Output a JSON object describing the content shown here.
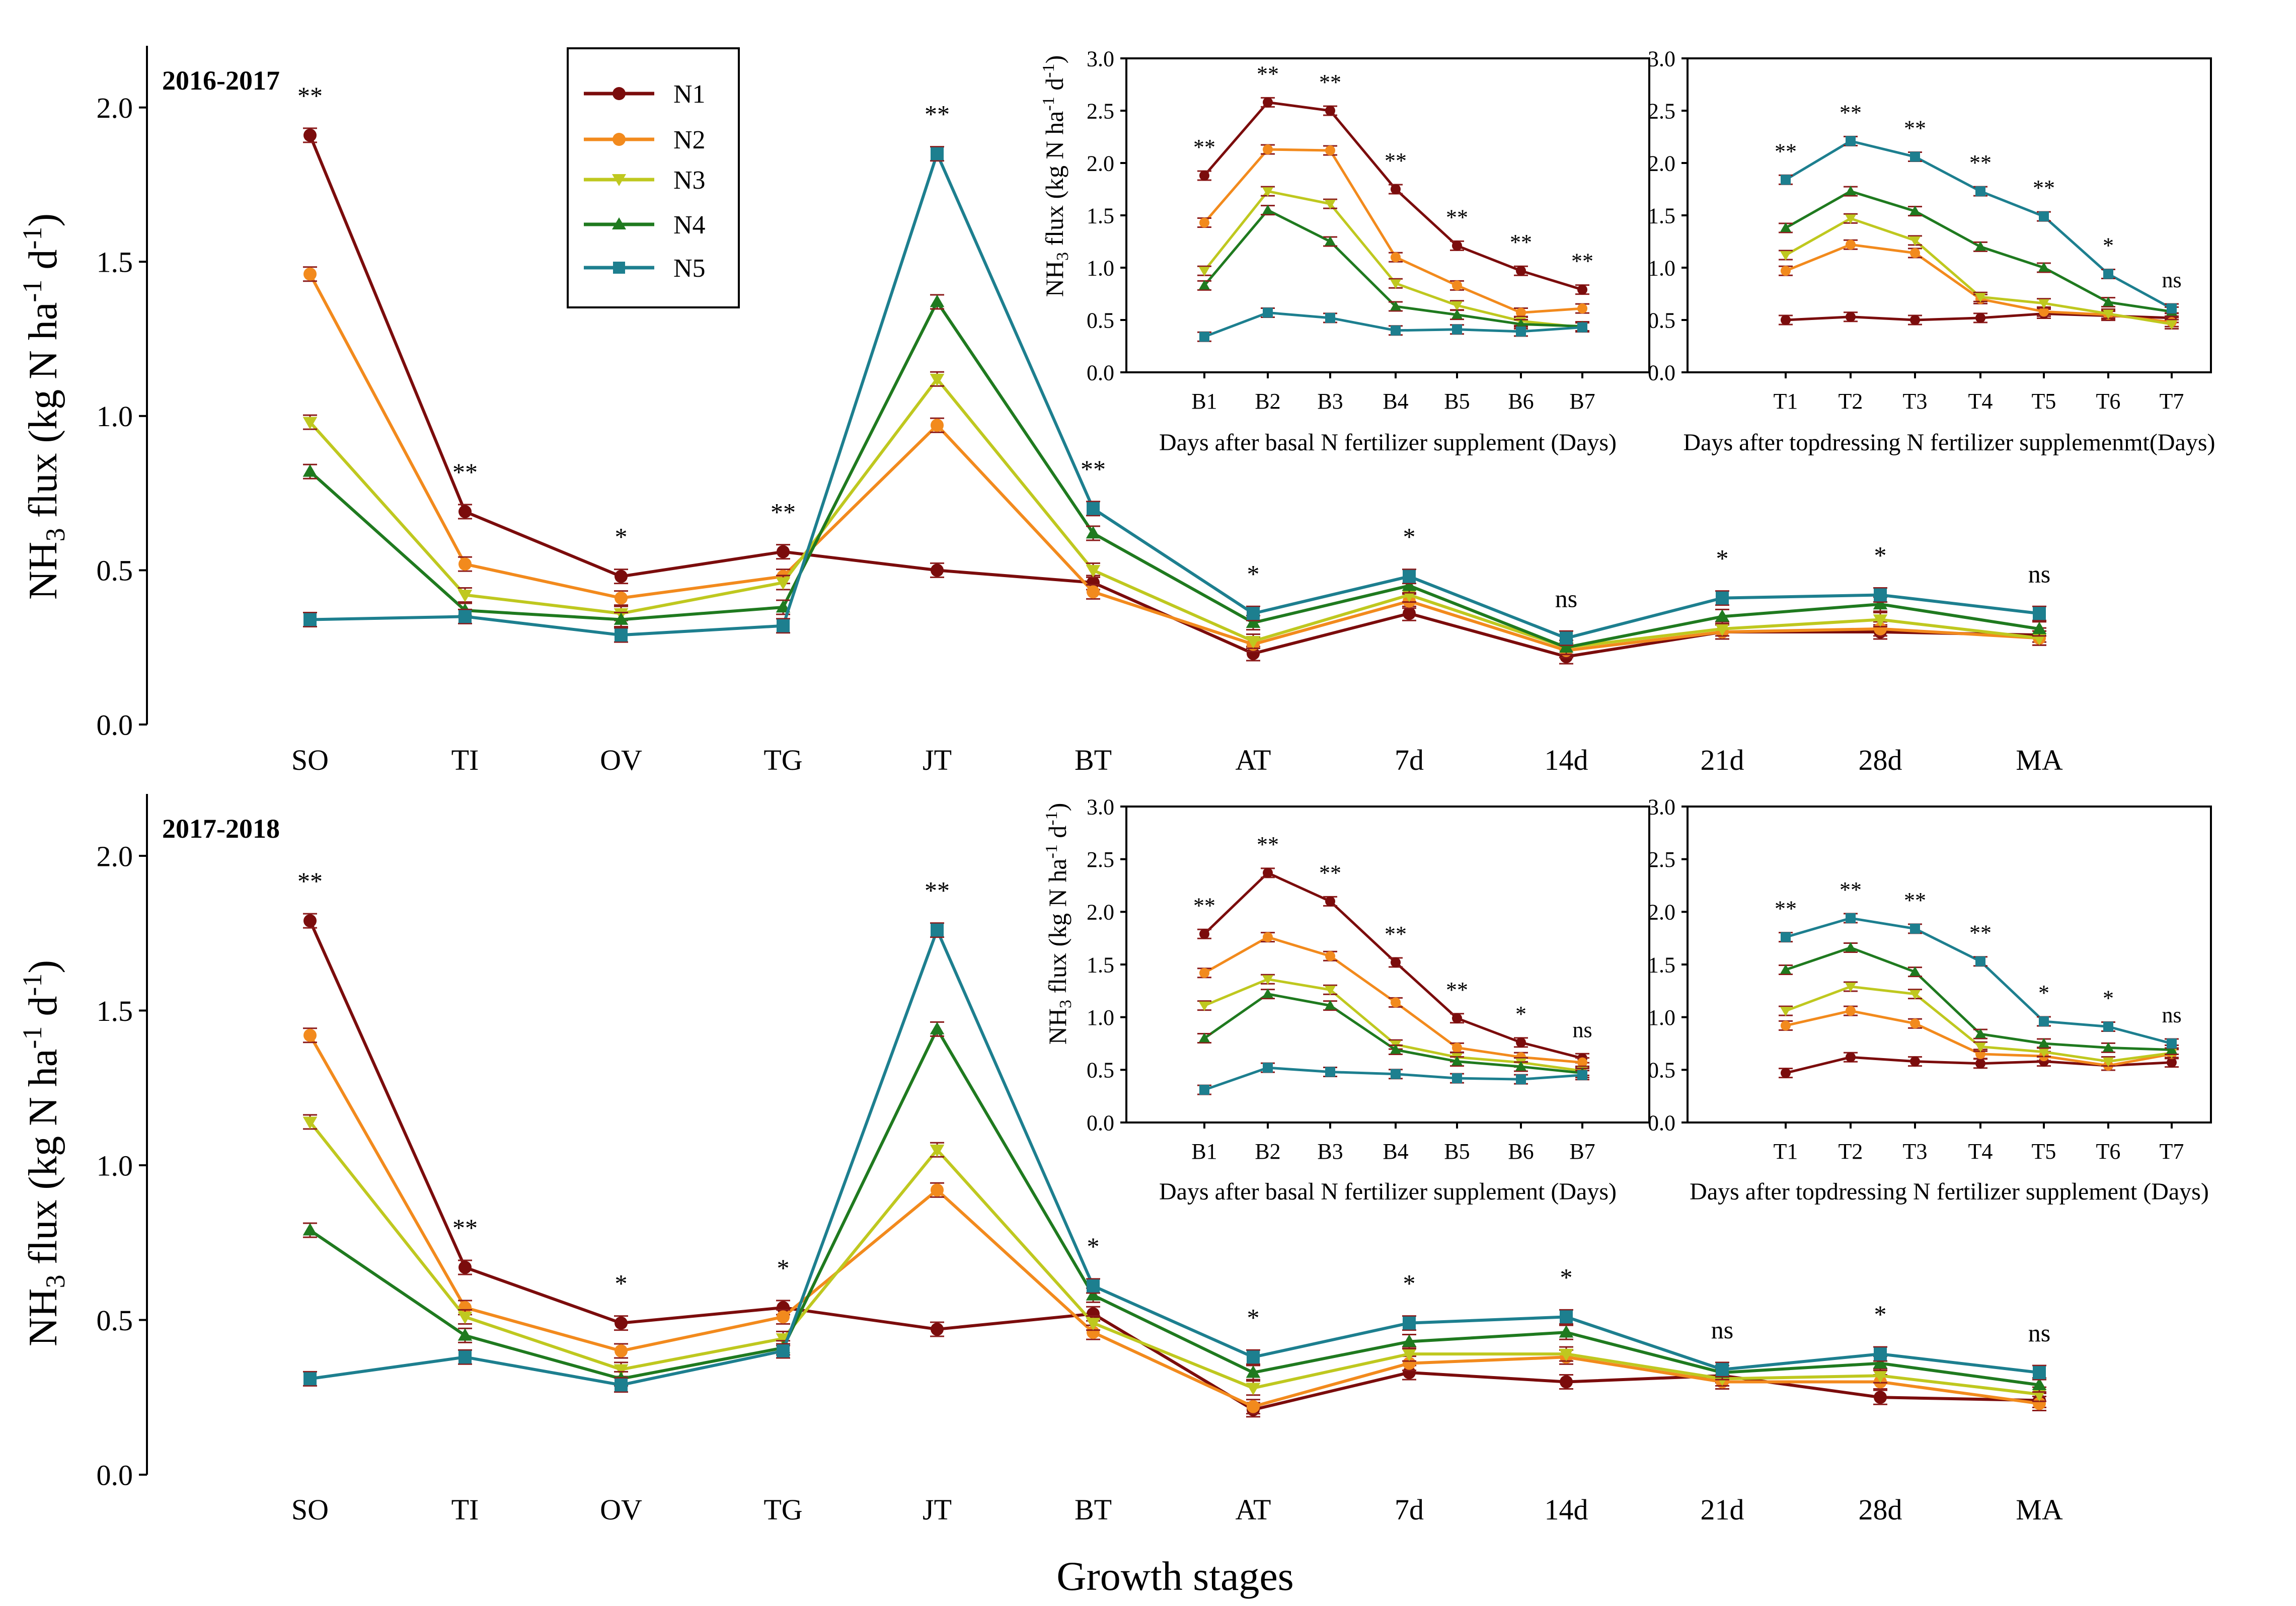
{
  "colors": {
    "N1": "#7b0c0c",
    "N2": "#f28a1d",
    "N3": "#bfc81f",
    "N4": "#1f7a1f",
    "N5": "#1d7f8f"
  },
  "figure": {
    "x_axis_title": "Growth stages",
    "y_axis_title_main": "NH",
    "y_axis_title_sub": "3",
    "y_axis_title_rest": " flux (kg N ha",
    "y_axis_title_sup1": "-1",
    "y_axis_title_mid": " d",
    "y_axis_title_sup2": "-1",
    "y_axis_title_end": ")"
  },
  "legend": [
    "N1",
    "N2",
    "N3",
    "N4",
    "N5"
  ],
  "chart_data": [
    {
      "id": "main2016",
      "type": "line",
      "title": "2016-2017",
      "xlabel": "",
      "ylabel": "NH3 flux (kg N ha-1 d-1)",
      "ylim": [
        0,
        2.2
      ],
      "yticks": [
        "0.0",
        "0.5",
        "1.0",
        "1.5",
        "2.0"
      ],
      "categories": [
        "SO",
        "TI",
        "OV",
        "TG",
        "JT",
        "BT",
        "AT",
        "7d",
        "14d",
        "21d",
        "28d",
        "MA"
      ],
      "significance": [
        "**",
        "**",
        "*",
        "**",
        "**",
        "**",
        "*",
        "*",
        "ns",
        "*",
        "*",
        "ns"
      ],
      "series": [
        {
          "name": "N1",
          "values": [
            1.91,
            0.69,
            0.48,
            0.56,
            0.5,
            0.46,
            0.23,
            0.36,
            0.22,
            0.3,
            0.3,
            0.29
          ]
        },
        {
          "name": "N2",
          "values": [
            1.46,
            0.52,
            0.41,
            0.48,
            0.97,
            0.43,
            0.26,
            0.4,
            0.24,
            0.3,
            0.31,
            0.28
          ]
        },
        {
          "name": "N3",
          "values": [
            0.98,
            0.42,
            0.36,
            0.46,
            1.12,
            0.5,
            0.27,
            0.42,
            0.25,
            0.31,
            0.34,
            0.28
          ]
        },
        {
          "name": "N4",
          "values": [
            0.82,
            0.37,
            0.34,
            0.38,
            1.37,
            0.62,
            0.33,
            0.45,
            0.25,
            0.35,
            0.39,
            0.31
          ]
        },
        {
          "name": "N5",
          "values": [
            0.34,
            0.35,
            0.29,
            0.32,
            1.85,
            0.7,
            0.36,
            0.48,
            0.28,
            0.41,
            0.42,
            0.36
          ]
        }
      ]
    },
    {
      "id": "inset2016a",
      "type": "line",
      "xlabel": "Days after basal N fertilizer supplement (Days)",
      "ylabel": "NH3 flux (kg N ha-1 d-1)",
      "ylim": [
        0,
        3.0
      ],
      "yticks": [
        "0.0",
        "0.5",
        "1.0",
        "1.5",
        "2.0",
        "2.5",
        "3.0"
      ],
      "categories": [
        "B1",
        "B2",
        "B3",
        "B4",
        "B5",
        "B6",
        "B7"
      ],
      "significance": [
        "**",
        "**",
        "**",
        "**",
        "**",
        "**",
        "**"
      ],
      "series": [
        {
          "name": "N1",
          "values": [
            1.88,
            2.58,
            2.5,
            1.75,
            1.21,
            0.97,
            0.79
          ]
        },
        {
          "name": "N2",
          "values": [
            1.43,
            2.13,
            2.12,
            1.1,
            0.83,
            0.57,
            0.61
          ]
        },
        {
          "name": "N3",
          "values": [
            0.97,
            1.73,
            1.61,
            0.85,
            0.64,
            0.49,
            0.43
          ]
        },
        {
          "name": "N4",
          "values": [
            0.83,
            1.55,
            1.25,
            0.63,
            0.55,
            0.46,
            0.44
          ]
        },
        {
          "name": "N5",
          "values": [
            0.34,
            0.57,
            0.52,
            0.4,
            0.41,
            0.39,
            0.43
          ]
        }
      ]
    },
    {
      "id": "inset2016b",
      "type": "line",
      "xlabel": "Days after topdressing N fertilizer supplemenmt(Days)",
      "ylabel": "",
      "ylim": [
        0,
        3.0
      ],
      "yticks": [
        "0.0",
        "0.5",
        "1.0",
        "1.5",
        "2.0",
        "2.5",
        "3.0"
      ],
      "categories": [
        "T1",
        "T2",
        "T3",
        "T4",
        "T5",
        "T6",
        "T7"
      ],
      "significance": [
        "**",
        "**",
        "**",
        "**",
        "**",
        "*",
        "ns"
      ],
      "series": [
        {
          "name": "N1",
          "values": [
            0.5,
            0.53,
            0.5,
            0.52,
            0.56,
            0.54,
            0.52
          ]
        },
        {
          "name": "N2",
          "values": [
            0.97,
            1.22,
            1.14,
            0.7,
            0.58,
            0.55,
            0.48
          ]
        },
        {
          "name": "N3",
          "values": [
            1.12,
            1.47,
            1.26,
            0.72,
            0.66,
            0.56,
            0.46
          ]
        },
        {
          "name": "N4",
          "values": [
            1.38,
            1.73,
            1.54,
            1.2,
            1.0,
            0.67,
            0.58
          ]
        },
        {
          "name": "N5",
          "values": [
            1.84,
            2.21,
            2.06,
            1.73,
            1.49,
            0.94,
            0.61
          ]
        }
      ]
    },
    {
      "id": "main2017",
      "type": "line",
      "title": "2017-2018",
      "xlabel": "Growth stages",
      "ylabel": "NH3 flux (kg N ha-1 d-1)",
      "ylim": [
        0,
        2.2
      ],
      "yticks": [
        "0.0",
        "0.5",
        "1.0",
        "1.5",
        "2.0"
      ],
      "categories": [
        "SO",
        "TI",
        "OV",
        "TG",
        "JT",
        "BT",
        "AT",
        "7d",
        "14d",
        "21d",
        "28d",
        "MA"
      ],
      "significance": [
        "**",
        "**",
        "*",
        "*",
        "**",
        "*",
        "*",
        "*",
        "*",
        "ns",
        "*",
        "ns"
      ],
      "series": [
        {
          "name": "N1",
          "values": [
            1.79,
            0.67,
            0.49,
            0.54,
            0.47,
            0.52,
            0.21,
            0.33,
            0.3,
            0.32,
            0.25,
            0.24
          ]
        },
        {
          "name": "N2",
          "values": [
            1.42,
            0.54,
            0.4,
            0.51,
            0.92,
            0.46,
            0.22,
            0.36,
            0.38,
            0.3,
            0.3,
            0.23
          ]
        },
        {
          "name": "N3",
          "values": [
            1.14,
            0.51,
            0.34,
            0.44,
            1.05,
            0.49,
            0.28,
            0.39,
            0.39,
            0.31,
            0.32,
            0.26
          ]
        },
        {
          "name": "N4",
          "values": [
            0.79,
            0.45,
            0.31,
            0.41,
            1.44,
            0.58,
            0.33,
            0.43,
            0.46,
            0.33,
            0.36,
            0.29
          ]
        },
        {
          "name": "N5",
          "values": [
            0.31,
            0.38,
            0.29,
            0.4,
            1.76,
            0.61,
            0.38,
            0.49,
            0.51,
            0.34,
            0.39,
            0.33
          ]
        }
      ]
    },
    {
      "id": "inset2017a",
      "type": "line",
      "xlabel": "Days after basal N fertilizer supplement (Days)",
      "ylabel": "NH3 flux (kg N ha-1 d-1)",
      "ylim": [
        0,
        3.0
      ],
      "yticks": [
        "0.0",
        "0.5",
        "1.0",
        "1.5",
        "2.0",
        "2.5",
        "3.0"
      ],
      "categories": [
        "B1",
        "B2",
        "B3",
        "B4",
        "B5",
        "B6",
        "B7"
      ],
      "significance": [
        "**",
        "**",
        "**",
        "**",
        "**",
        "*",
        "ns"
      ],
      "series": [
        {
          "name": "N1",
          "values": [
            1.79,
            2.37,
            2.1,
            1.52,
            0.99,
            0.76,
            0.61
          ]
        },
        {
          "name": "N2",
          "values": [
            1.42,
            1.76,
            1.58,
            1.14,
            0.71,
            0.62,
            0.57
          ]
        },
        {
          "name": "N3",
          "values": [
            1.11,
            1.36,
            1.26,
            0.74,
            0.62,
            0.57,
            0.49
          ]
        },
        {
          "name": "N4",
          "values": [
            0.8,
            1.22,
            1.11,
            0.69,
            0.58,
            0.53,
            0.47
          ]
        },
        {
          "name": "N5",
          "values": [
            0.31,
            0.52,
            0.48,
            0.46,
            0.42,
            0.41,
            0.45
          ]
        }
      ]
    },
    {
      "id": "inset2017b",
      "type": "line",
      "xlabel": "Days after topdressing N fertilizer supplement (Days)",
      "ylabel": "",
      "ylim": [
        0,
        3.0
      ],
      "yticks": [
        "0.0",
        "0.5",
        "1.0",
        "1.5",
        "2.0",
        "2.5",
        "3.0"
      ],
      "categories": [
        "T1",
        "T2",
        "T3",
        "T4",
        "T5",
        "T6",
        "T7"
      ],
      "significance": [
        "**",
        "**",
        "**",
        "**",
        "*",
        "*",
        "ns"
      ],
      "series": [
        {
          "name": "N1",
          "values": [
            0.47,
            0.62,
            0.58,
            0.56,
            0.58,
            0.54,
            0.57
          ]
        },
        {
          "name": "N2",
          "values": [
            0.92,
            1.06,
            0.94,
            0.65,
            0.63,
            0.54,
            0.65
          ]
        },
        {
          "name": "N3",
          "values": [
            1.06,
            1.29,
            1.22,
            0.72,
            0.67,
            0.58,
            0.66
          ]
        },
        {
          "name": "N4",
          "values": [
            1.45,
            1.66,
            1.43,
            0.84,
            0.75,
            0.71,
            0.69
          ]
        },
        {
          "name": "N5",
          "values": [
            1.76,
            1.94,
            1.84,
            1.53,
            0.96,
            0.91,
            0.75
          ]
        }
      ]
    }
  ]
}
